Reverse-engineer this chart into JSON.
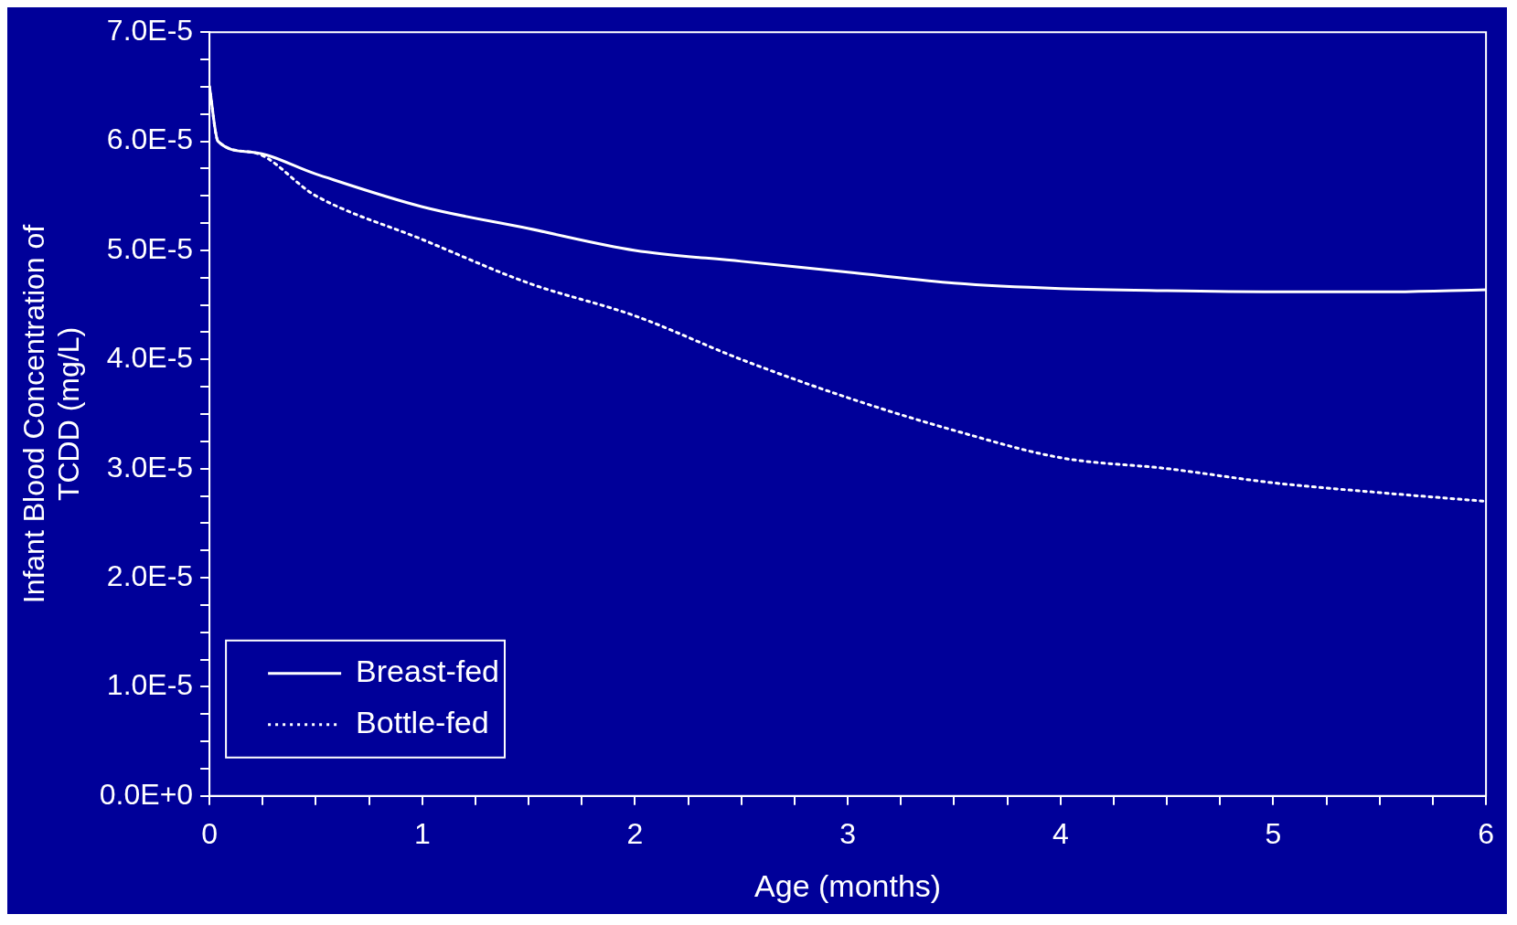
{
  "chart_data": {
    "type": "line",
    "xlabel": "Age (months)",
    "ylabel": "Infant Blood Concentration of\nTCDD (mg/L)",
    "xlim": [
      0,
      6
    ],
    "xticks": [
      0,
      {
        "value": 0.25,
        "label": null
      },
      {
        "value": 0.5,
        "label": null
      },
      {
        "value": 0.75,
        "label": null
      },
      1,
      {
        "value": 1.25,
        "label": null
      },
      {
        "value": 1.5,
        "label": null
      },
      {
        "value": 1.75,
        "label": null
      },
      2,
      {
        "value": 2.25,
        "label": null
      },
      {
        "value": 2.5,
        "label": null
      },
      {
        "value": 2.75,
        "label": null
      },
      3,
      {
        "value": 3.25,
        "label": null
      },
      {
        "value": 3.5,
        "label": null
      },
      {
        "value": 3.75,
        "label": null
      },
      4,
      {
        "value": 4.25,
        "label": null
      },
      {
        "value": 4.5,
        "label": null
      },
      {
        "value": 4.75,
        "label": null
      },
      5,
      {
        "value": 5.25,
        "label": null
      },
      {
        "value": 5.5,
        "label": null
      },
      {
        "value": 5.75,
        "label": null
      },
      6
    ],
    "ylim": [
      0,
      7e-05
    ],
    "yticks": [
      {
        "value": 0,
        "label": "0.0E+0"
      },
      {
        "value": 2.5e-06,
        "label": null
      },
      {
        "value": 5e-06,
        "label": null
      },
      {
        "value": 7.5e-06,
        "label": null
      },
      {
        "value": 1e-05,
        "label": "1.0E-5"
      },
      {
        "value": 1.25e-05,
        "label": null
      },
      {
        "value": 1.5e-05,
        "label": null
      },
      {
        "value": 1.75e-05,
        "label": null
      },
      {
        "value": 2e-05,
        "label": "2.0E-5"
      },
      {
        "value": 2.25e-05,
        "label": null
      },
      {
        "value": 2.5e-05,
        "label": null
      },
      {
        "value": 2.75e-05,
        "label": null
      },
      {
        "value": 3e-05,
        "label": "3.0E-5"
      },
      {
        "value": 3.25e-05,
        "label": null
      },
      {
        "value": 3.5e-05,
        "label": null
      },
      {
        "value": 3.75e-05,
        "label": null
      },
      {
        "value": 4e-05,
        "label": "4.0E-5"
      },
      {
        "value": 4.25e-05,
        "label": null
      },
      {
        "value": 4.5e-05,
        "label": null
      },
      {
        "value": 4.75e-05,
        "label": null
      },
      {
        "value": 5e-05,
        "label": "5.0E-5"
      },
      {
        "value": 5.25e-05,
        "label": null
      },
      {
        "value": 5.5e-05,
        "label": null
      },
      {
        "value": 5.75e-05,
        "label": null
      },
      {
        "value": 6e-05,
        "label": "6.0E-5"
      },
      {
        "value": 6.25e-05,
        "label": null
      },
      {
        "value": 6.5e-05,
        "label": null
      },
      {
        "value": 6.75e-05,
        "label": null
      },
      {
        "value": 7e-05,
        "label": "7.0E-5"
      }
    ],
    "grid": false,
    "legend": "bottom left",
    "marker": "none",
    "series": [
      {
        "name": "Breast-fed",
        "color": "#ffffff",
        "line_style": "solid",
        "x": [
          0,
          0.04,
          0.2,
          0.5,
          1,
          1.5,
          2,
          2.5,
          3,
          3.5,
          4,
          4.5,
          5,
          5.5,
          6
        ],
        "values": [
          6.5e-05,
          6e-05,
          5.9e-05,
          5.7e-05,
          5.4e-05,
          5.2e-05,
          5e-05,
          4.9e-05,
          4.8e-05,
          4.7e-05,
          4.65e-05,
          4.63e-05,
          4.62e-05,
          4.62e-05,
          4.64e-05
        ]
      },
      {
        "name": "Bottle-fed",
        "color": "#ffffff",
        "line_style": "dotted",
        "x": [
          0,
          0.04,
          0.2,
          0.5,
          1,
          1.5,
          2,
          2.5,
          3,
          3.5,
          4,
          4.5,
          5,
          5.5,
          6
        ],
        "values": [
          6.5e-05,
          6e-05,
          5.9e-05,
          5.5e-05,
          5.1e-05,
          4.7e-05,
          4.4e-05,
          4e-05,
          3.65e-05,
          3.35e-05,
          3.1e-05,
          3e-05,
          2.87e-05,
          2.78e-05,
          2.7e-05
        ]
      }
    ]
  }
}
